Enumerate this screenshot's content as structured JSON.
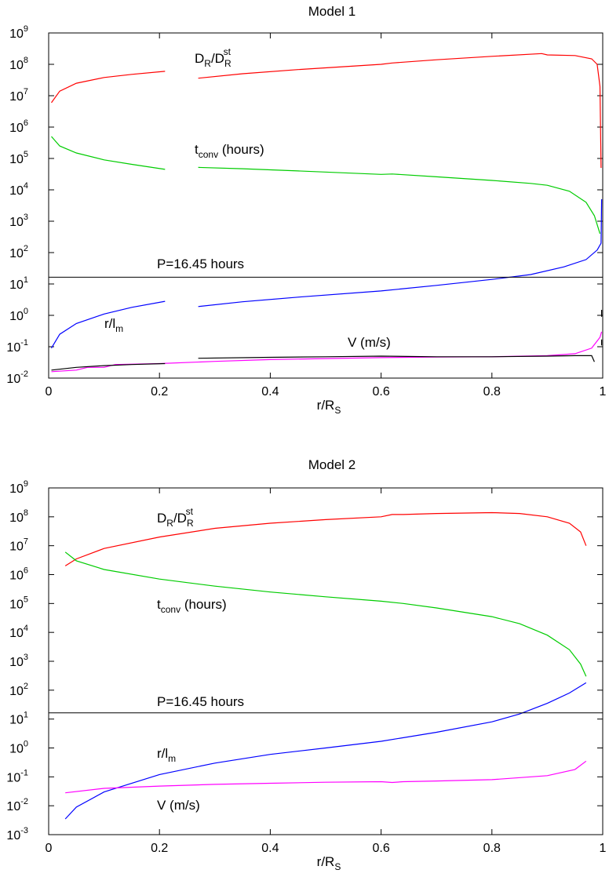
{
  "chart_data": [
    {
      "type": "line",
      "title": "Model 1",
      "xlabel": "r/R",
      "xlabel_sub": "S",
      "yscale": "log",
      "xlim": [
        0,
        1
      ],
      "ylim": [
        0.01,
        1000000000
      ],
      "x_ticks": [
        "0",
        "0.2",
        "0.4",
        "0.6",
        "0.8",
        "1"
      ],
      "y_ticks": [
        {
          "base": "10",
          "exp": "9"
        },
        {
          "base": "10",
          "exp": "8"
        },
        {
          "base": "10",
          "exp": "7"
        },
        {
          "base": "10",
          "exp": "6"
        },
        {
          "base": "10",
          "exp": "5"
        },
        {
          "base": "10",
          "exp": "4"
        },
        {
          "base": "10",
          "exp": "3"
        },
        {
          "base": "10",
          "exp": "2"
        },
        {
          "base": "10",
          "exp": "1"
        },
        {
          "base": "10",
          "exp": "0"
        },
        {
          "base": "10",
          "exp": "-1"
        },
        {
          "base": "10",
          "exp": "-2"
        }
      ],
      "hline": {
        "y": 16.45,
        "label": "P=16.45 hours"
      },
      "labels": {
        "dr": {
          "main": "D",
          "sub": "R",
          "slash": "/D",
          "sub2": "R",
          "sup2": "st"
        },
        "tconv": {
          "main": "t",
          "sub": "conv",
          "rest": " (hours)"
        },
        "rlm": {
          "main": "r/l",
          "sub": "m"
        },
        "v": {
          "text": "V (m/s)"
        }
      },
      "series": [
        {
          "key": "dr",
          "color": "#ff0000",
          "segments": [
            [
              [
                0.005,
                6000000
              ],
              [
                0.02,
                14000000
              ],
              [
                0.05,
                25000000
              ],
              [
                0.1,
                38000000
              ],
              [
                0.15,
                48000000
              ],
              [
                0.21,
                60000000
              ]
            ],
            [
              [
                0.27,
                36000000
              ],
              [
                0.35,
                50000000
              ],
              [
                0.45,
                68000000
              ],
              [
                0.6,
                100000000
              ],
              [
                0.62,
                110000000
              ],
              [
                0.7,
                140000000
              ],
              [
                0.8,
                180000000
              ],
              [
                0.89,
                220000000
              ],
              [
                0.9,
                200000000
              ],
              [
                0.95,
                190000000
              ],
              [
                0.98,
                150000000
              ],
              [
                0.99,
                100000000
              ],
              [
                0.995,
                20000000
              ],
              [
                0.997,
                50000
              ]
            ]
          ]
        },
        {
          "key": "tconv",
          "color": "#00cc00",
          "segments": [
            [
              [
                0.005,
                500000
              ],
              [
                0.02,
                250000
              ],
              [
                0.05,
                150000
              ],
              [
                0.1,
                90000
              ],
              [
                0.15,
                65000
              ],
              [
                0.21,
                45000
              ]
            ],
            [
              [
                0.27,
                52000
              ],
              [
                0.35,
                47000
              ],
              [
                0.45,
                40000
              ],
              [
                0.6,
                31000
              ],
              [
                0.62,
                32000
              ],
              [
                0.7,
                26000
              ],
              [
                0.8,
                20000
              ],
              [
                0.87,
                16000
              ],
              [
                0.9,
                14000
              ],
              [
                0.94,
                9000
              ],
              [
                0.97,
                4000
              ],
              [
                0.985,
                1500
              ],
              [
                0.995,
                400
              ]
            ]
          ]
        },
        {
          "key": "rlm",
          "color": "#0000ff",
          "segments": [
            [
              [
                0.005,
                0.09
              ],
              [
                0.02,
                0.25
              ],
              [
                0.05,
                0.55
              ],
              [
                0.1,
                1.1
              ],
              [
                0.15,
                1.8
              ],
              [
                0.21,
                2.8
              ]
            ],
            [
              [
                0.27,
                1.9
              ],
              [
                0.35,
                2.7
              ],
              [
                0.45,
                3.8
              ],
              [
                0.6,
                6
              ],
              [
                0.7,
                9
              ],
              [
                0.8,
                14
              ],
              [
                0.87,
                20
              ],
              [
                0.93,
                35
              ],
              [
                0.97,
                60
              ],
              [
                0.99,
                120
              ],
              [
                0.997,
                200
              ],
              [
                0.998,
                5000
              ]
            ]
          ]
        },
        {
          "key": "v",
          "color": "#ff00ff",
          "segments": [
            [
              [
                0.005,
                0.016
              ],
              [
                0.05,
                0.018
              ],
              [
                0.07,
                0.022
              ],
              [
                0.1,
                0.022
              ],
              [
                0.12,
                0.027
              ],
              [
                0.2,
                0.029
              ],
              [
                0.3,
                0.034
              ],
              [
                0.4,
                0.039
              ],
              [
                0.5,
                0.042
              ],
              [
                0.6,
                0.045
              ],
              [
                0.7,
                0.047
              ],
              [
                0.8,
                0.048
              ],
              [
                0.9,
                0.052
              ],
              [
                0.95,
                0.06
              ],
              [
                0.98,
                0.09
              ],
              [
                0.995,
                0.2
              ],
              [
                0.998,
                0.3
              ]
            ]
          ]
        },
        {
          "key": "black",
          "color": "#000000",
          "segments": [
            [
              [
                0.005,
                0.018
              ],
              [
                0.05,
                0.022
              ],
              [
                0.1,
                0.025
              ],
              [
                0.15,
                0.027
              ],
              [
                0.21,
                0.029
              ]
            ],
            [
              [
                0.27,
                0.043
              ],
              [
                0.4,
                0.046
              ],
              [
                0.5,
                0.048
              ],
              [
                0.6,
                0.05
              ],
              [
                0.7,
                0.048
              ],
              [
                0.8,
                0.048
              ],
              [
                0.9,
                0.05
              ],
              [
                0.95,
                0.052
              ],
              [
                0.98,
                0.052
              ],
              [
                0.985,
                0.033
              ]
            ],
            [
              [
                0.998,
                0.9
              ],
              [
                0.998,
                1.5
              ]
            ],
            [
              [
                0.998,
                0.11
              ],
              [
                0.998,
                0.17
              ]
            ]
          ]
        }
      ]
    },
    {
      "type": "line",
      "title": "Model 2",
      "xlabel": "r/R",
      "xlabel_sub": "S",
      "yscale": "log",
      "xlim": [
        0,
        1
      ],
      "ylim": [
        0.001,
        1000000000
      ],
      "x_ticks": [
        "0",
        "0.2",
        "0.4",
        "0.6",
        "0.8",
        "1"
      ],
      "y_ticks": [
        {
          "base": "10",
          "exp": "9"
        },
        {
          "base": "10",
          "exp": "8"
        },
        {
          "base": "10",
          "exp": "7"
        },
        {
          "base": "10",
          "exp": "6"
        },
        {
          "base": "10",
          "exp": "5"
        },
        {
          "base": "10",
          "exp": "4"
        },
        {
          "base": "10",
          "exp": "3"
        },
        {
          "base": "10",
          "exp": "2"
        },
        {
          "base": "10",
          "exp": "1"
        },
        {
          "base": "10",
          "exp": "0"
        },
        {
          "base": "10",
          "exp": "-1"
        },
        {
          "base": "10",
          "exp": "-2"
        },
        {
          "base": "10",
          "exp": "-3"
        }
      ],
      "hline": {
        "y": 16.45,
        "label": "P=16.45 hours"
      },
      "labels": {
        "dr": {
          "main": "D",
          "sub": "R",
          "slash": "/D",
          "sub2": "R",
          "sup2": "st"
        },
        "tconv": {
          "main": "t",
          "sub": "conv",
          "rest": " (hours)"
        },
        "rlm": {
          "main": "r/l",
          "sub": "m"
        },
        "v": {
          "text": "V (m/s)"
        }
      },
      "series": [
        {
          "key": "dr",
          "color": "#ff0000",
          "segments": [
            [
              [
                0.03,
                2000000
              ],
              [
                0.05,
                3500000
              ],
              [
                0.1,
                8000000
              ],
              [
                0.2,
                20000000
              ],
              [
                0.3,
                40000000
              ],
              [
                0.4,
                60000000
              ],
              [
                0.5,
                80000000
              ],
              [
                0.6,
                100000000
              ],
              [
                0.62,
                120000000
              ],
              [
                0.64,
                120000000
              ],
              [
                0.7,
                130000000
              ],
              [
                0.8,
                140000000
              ],
              [
                0.85,
                130000000
              ],
              [
                0.9,
                100000000
              ],
              [
                0.94,
                60000000
              ],
              [
                0.96,
                30000000
              ],
              [
                0.97,
                10000000
              ]
            ]
          ]
        },
        {
          "key": "tconv",
          "color": "#00cc00",
          "segments": [
            [
              [
                0.03,
                6000000
              ],
              [
                0.05,
                3000000
              ],
              [
                0.1,
                1500000
              ],
              [
                0.2,
                700000
              ],
              [
                0.3,
                400000
              ],
              [
                0.4,
                250000
              ],
              [
                0.5,
                170000
              ],
              [
                0.6,
                120000
              ],
              [
                0.64,
                100000
              ],
              [
                0.7,
                70000
              ],
              [
                0.8,
                35000
              ],
              [
                0.85,
                20000
              ],
              [
                0.9,
                8000
              ],
              [
                0.94,
                2500
              ],
              [
                0.96,
                800
              ],
              [
                0.97,
                300
              ]
            ]
          ]
        },
        {
          "key": "rlm",
          "color": "#0000ff",
          "segments": [
            [
              [
                0.03,
                0.0035
              ],
              [
                0.05,
                0.009
              ],
              [
                0.1,
                0.03
              ],
              [
                0.2,
                0.12
              ],
              [
                0.3,
                0.3
              ],
              [
                0.4,
                0.6
              ],
              [
                0.5,
                1
              ],
              [
                0.6,
                1.7
              ],
              [
                0.7,
                3.5
              ],
              [
                0.8,
                8
              ],
              [
                0.85,
                15
              ],
              [
                0.9,
                35
              ],
              [
                0.94,
                80
              ],
              [
                0.97,
                180
              ]
            ]
          ]
        },
        {
          "key": "v",
          "color": "#ff00ff",
          "segments": [
            [
              [
                0.03,
                0.028
              ],
              [
                0.1,
                0.04
              ],
              [
                0.2,
                0.048
              ],
              [
                0.3,
                0.055
              ],
              [
                0.4,
                0.06
              ],
              [
                0.5,
                0.065
              ],
              [
                0.6,
                0.068
              ],
              [
                0.62,
                0.064
              ],
              [
                0.64,
                0.068
              ],
              [
                0.7,
                0.072
              ],
              [
                0.8,
                0.08
              ],
              [
                0.9,
                0.11
              ],
              [
                0.95,
                0.18
              ],
              [
                0.97,
                0.35
              ]
            ]
          ]
        }
      ]
    }
  ]
}
